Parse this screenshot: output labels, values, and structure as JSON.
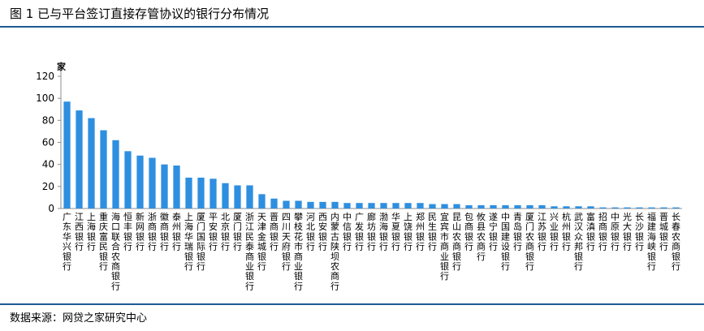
{
  "header": {
    "title": "图 1 已与平台签订直接存管协议的银行分布情况"
  },
  "footer": {
    "source": "数据来源：网贷之家研究中心"
  },
  "colors": {
    "bar": "#2e8fe0",
    "rule": "#1f5a93",
    "axis": "#8c8c8c"
  },
  "chart_data": {
    "type": "bar",
    "ylabel": "家",
    "ylim": [
      0,
      120
    ],
    "yticks": [
      0,
      20,
      40,
      60,
      80,
      100,
      120
    ],
    "grid": false,
    "categories": [
      "广东华兴银行",
      "江西银行",
      "上海银行",
      "重庆富民银行",
      "海口联合农商银行",
      "恒丰银行",
      "新网银行",
      "浙商银行",
      "徽商银行",
      "泰州银行",
      "上海华瑞银行",
      "厦门国际银行",
      "平安银行",
      "北京银行",
      "厦门银行",
      "浙江民泰商业银行",
      "天津金城银行",
      "晋商银行",
      "四川天府银行",
      "攀枝花市商业银行",
      "河北银行",
      "西安银行",
      "内蒙古陕坝农商行",
      "中信银行",
      "广发银行",
      "廊坊银行",
      "渤海银行",
      "华夏银行",
      "上饶银行",
      "郑州银行",
      "民生银行",
      "宜宾市商业银行",
      "昆山农商银行",
      "包商银行",
      "攸县农商行",
      "遂宁银行",
      "中国建设银行",
      "青岛银行",
      "厦门农商银行",
      "江苏银行",
      "兴业银行",
      "杭州银行",
      "武汉众邦银行",
      "富滇银行",
      "招商银行",
      "中原银行",
      "光大银行",
      "长沙银行",
      "福建海峡银行",
      "晋城银行",
      "长春农商银行"
    ],
    "values": [
      97,
      89,
      82,
      71,
      62,
      52,
      48,
      46,
      40,
      39,
      28,
      28,
      27,
      23,
      21,
      21,
      13,
      9,
      7,
      7,
      6,
      6,
      6,
      5,
      5,
      5,
      5,
      5,
      5,
      5,
      4,
      4,
      4,
      3,
      3,
      3,
      3,
      3,
      3,
      3,
      2,
      2,
      2,
      2,
      1,
      1,
      1,
      1,
      1,
      1,
      1
    ]
  }
}
